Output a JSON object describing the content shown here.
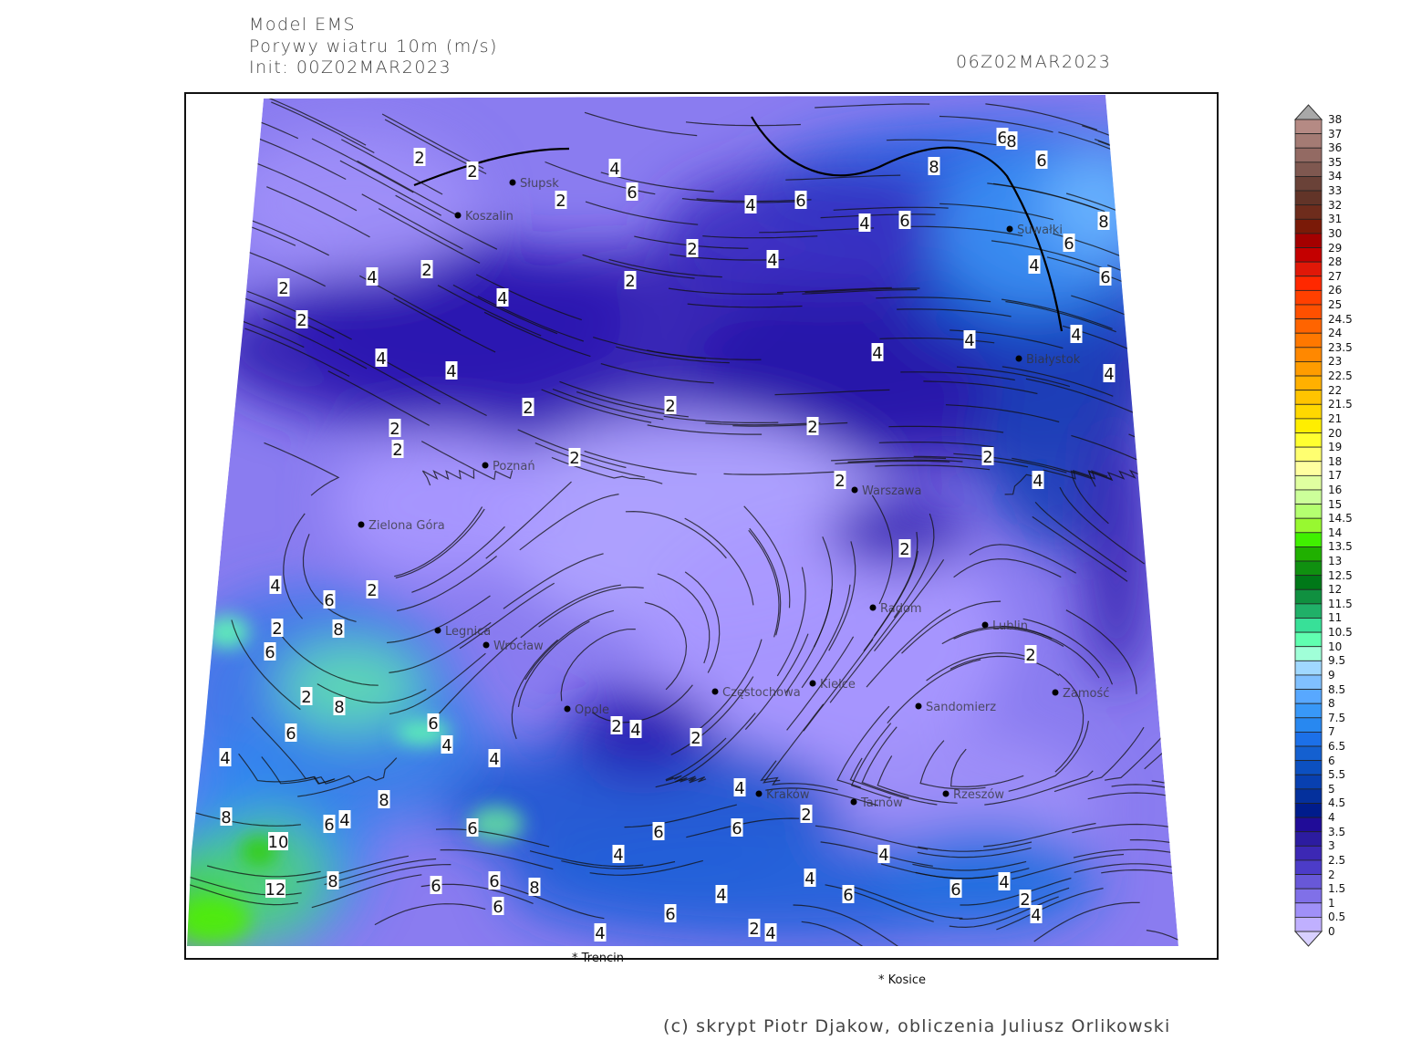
{
  "header": {
    "model": "Model EMS",
    "variable": "Porywy wiatru 10m (m/s)",
    "init": "Init: 00Z02MAR2023",
    "valid_time": "06Z02MAR2023"
  },
  "footer": {
    "copyright": "(c) skrypt Piotr Djakow, obliczenia Juliusz Orlikowski"
  },
  "map": {
    "region": "Poland",
    "field": "wind gusts 10m",
    "overlay": "streamlines",
    "cities": [
      "Słupsk",
      "Koszalin",
      "Suwałki",
      "Białystok",
      "Poznań",
      "Warszawa",
      "Zielona Góra",
      "Legnica",
      "Wrocław",
      "Opole",
      "Częstochowa",
      "Kielce",
      "Radom",
      "Lublin",
      "Zamość",
      "Sandomierz",
      "Rzeszów",
      "Tarnów",
      "Kraków"
    ],
    "outside_labels": [
      "Trencin",
      "Kosice"
    ],
    "contour_labels": [
      "2",
      "2",
      "4",
      "6",
      "2",
      "4",
      "6",
      "4",
      "6",
      "8",
      "6",
      "8",
      "6",
      "8",
      "6",
      "4",
      "6",
      "4",
      "4",
      "4",
      "4",
      "4",
      "2",
      "2",
      "4",
      "2",
      "4",
      "2",
      "2",
      "4",
      "4",
      "2",
      "2",
      "2",
      "2",
      "4",
      "2",
      "2",
      "2",
      "2",
      "2",
      "2",
      "4",
      "6",
      "2",
      "2",
      "8",
      "6",
      "2",
      "8",
      "6",
      "6",
      "4",
      "4",
      "4",
      "2",
      "4",
      "2",
      "4",
      "2",
      "6",
      "6",
      "4",
      "8",
      "6",
      "4",
      "8",
      "6",
      "10",
      "12",
      "8",
      "6",
      "6",
      "6",
      "8",
      "6",
      "4",
      "2",
      "4",
      "4",
      "6",
      "4",
      "6",
      "4",
      "2",
      "4",
      "4"
    ]
  },
  "colorbar": {
    "labels": [
      "38",
      "37",
      "36",
      "35",
      "34",
      "33",
      "32",
      "31",
      "30",
      "29",
      "28",
      "27",
      "26",
      "25",
      "24.5",
      "24",
      "23.5",
      "23",
      "22.5",
      "22",
      "21.5",
      "21",
      "20",
      "19",
      "18",
      "17",
      "16",
      "15",
      "14.5",
      "14",
      "13.5",
      "13",
      "12.5",
      "12",
      "11.5",
      "11",
      "10.5",
      "10",
      "9.5",
      "9",
      "8.5",
      "8",
      "7.5",
      "7",
      "6.5",
      "6",
      "5.5",
      "5",
      "4.5",
      "4",
      "3.5",
      "3",
      "2.5",
      "2",
      "1.5",
      "1",
      "0.5",
      "0"
    ],
    "colors": [
      "#b58a84",
      "#a47b74",
      "#936a63",
      "#7f5850",
      "#6a4238",
      "#623428",
      "#6e2c1c",
      "#7a1a08",
      "#a40000",
      "#c40000",
      "#e01808",
      "#ff2800",
      "#ff4000",
      "#ff5000",
      "#ff6400",
      "#ff7800",
      "#ff8800",
      "#ff9c00",
      "#ffb000",
      "#ffc400",
      "#ffd800",
      "#ffee00",
      "#ffff30",
      "#ffff70",
      "#ffffa0",
      "#e0ffa0",
      "#ccff9a",
      "#b4ff70",
      "#98f830",
      "#40f000",
      "#20b000",
      "#109010",
      "#007818",
      "#109040",
      "#20b068",
      "#38e098",
      "#60ffb0",
      "#a0ffd8",
      "#a0d8ff",
      "#80c0ff",
      "#58a8ff",
      "#3898f8",
      "#2888f0",
      "#1c70e8",
      "#1460d0",
      "#0c50c0",
      "#0840b0",
      "#04309c",
      "#001c8c",
      "#200c98",
      "#2c1ca0",
      "#3c28b4",
      "#4c3cc8",
      "#6858d8",
      "#8070e8",
      "#a090f8",
      "#c0b0ff"
    ],
    "over_color": "#a8a8a8",
    "under_color": "#d8d0ff"
  }
}
